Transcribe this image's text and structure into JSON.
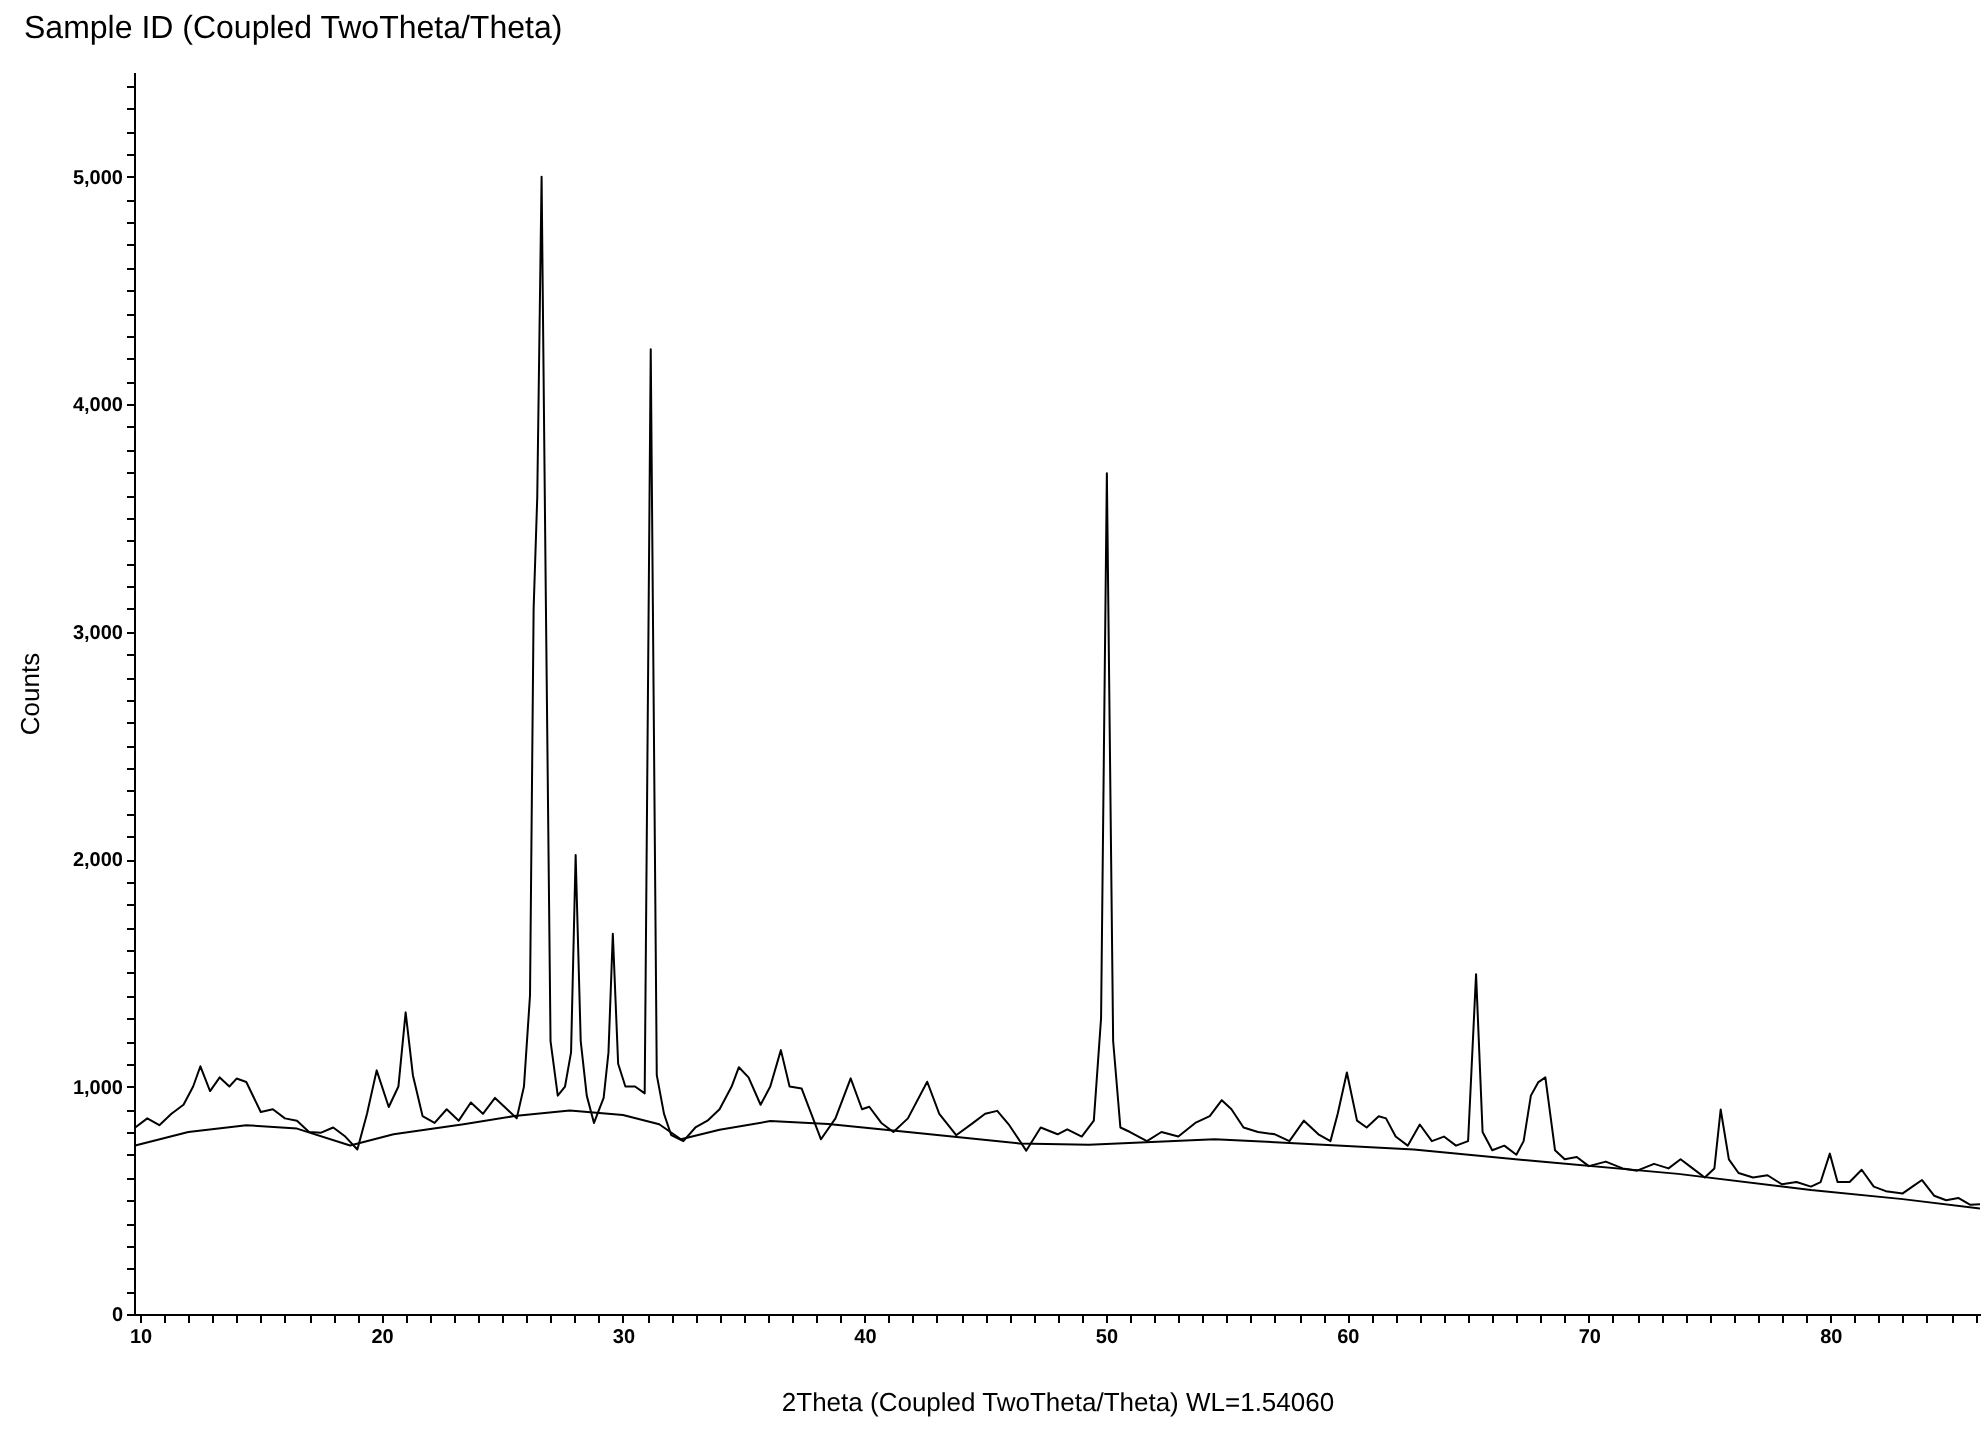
{
  "chart_data": {
    "type": "line",
    "title": "Sample ID (Coupled TwoTheta/Theta)",
    "xlabel": "2Theta (Coupled TwoTheta/Theta) WL=1.54060",
    "ylabel": "Counts",
    "xlim": [
      9.75,
      86.2
    ],
    "ylim": [
      0,
      5460
    ],
    "xticks": [
      10,
      {
        "value": 11,
        "label": null
      },
      {
        "value": 12,
        "label": null
      },
      {
        "value": 13,
        "label": null
      },
      {
        "value": 14,
        "label": null
      },
      {
        "value": 15,
        "label": null
      },
      {
        "value": 16,
        "label": null
      },
      {
        "value": 17,
        "label": null
      },
      {
        "value": 18,
        "label": null
      },
      {
        "value": 19,
        "label": null
      },
      20,
      {
        "value": 21,
        "label": null
      },
      {
        "value": 22,
        "label": null
      },
      {
        "value": 23,
        "label": null
      },
      {
        "value": 24,
        "label": null
      },
      {
        "value": 25,
        "label": null
      },
      {
        "value": 26,
        "label": null
      },
      {
        "value": 27,
        "label": null
      },
      {
        "value": 28,
        "label": null
      },
      {
        "value": 29,
        "label": null
      },
      30,
      {
        "value": 31,
        "label": null
      },
      {
        "value": 32,
        "label": null
      },
      {
        "value": 33,
        "label": null
      },
      {
        "value": 34,
        "label": null
      },
      {
        "value": 35,
        "label": null
      },
      {
        "value": 36,
        "label": null
      },
      {
        "value": 37,
        "label": null
      },
      {
        "value": 38,
        "label": null
      },
      {
        "value": 39,
        "label": null
      },
      40,
      {
        "value": 41,
        "label": null
      },
      {
        "value": 42,
        "label": null
      },
      {
        "value": 43,
        "label": null
      },
      {
        "value": 44,
        "label": null
      },
      {
        "value": 45,
        "label": null
      },
      {
        "value": 46,
        "label": null
      },
      {
        "value": 47,
        "label": null
      },
      {
        "value": 48,
        "label": null
      },
      {
        "value": 49,
        "label": null
      },
      50,
      {
        "value": 51,
        "label": null
      },
      {
        "value": 52,
        "label": null
      },
      {
        "value": 53,
        "label": null
      },
      {
        "value": 54,
        "label": null
      },
      {
        "value": 55,
        "label": null
      },
      {
        "value": 56,
        "label": null
      },
      {
        "value": 57,
        "label": null
      },
      {
        "value": 58,
        "label": null
      },
      {
        "value": 59,
        "label": null
      },
      60,
      {
        "value": 61,
        "label": null
      },
      {
        "value": 62,
        "label": null
      },
      {
        "value": 63,
        "label": null
      },
      {
        "value": 64,
        "label": null
      },
      {
        "value": 65,
        "label": null
      },
      {
        "value": 66,
        "label": null
      },
      {
        "value": 67,
        "label": null
      },
      {
        "value": 68,
        "label": null
      },
      {
        "value": 69,
        "label": null
      },
      70,
      {
        "value": 71,
        "label": null
      },
      {
        "value": 72,
        "label": null
      },
      {
        "value": 73,
        "label": null
      },
      {
        "value": 74,
        "label": null
      },
      {
        "value": 75,
        "label": null
      },
      {
        "value": 76,
        "label": null
      },
      {
        "value": 77,
        "label": null
      },
      {
        "value": 78,
        "label": null
      },
      {
        "value": 79,
        "label": null
      },
      80,
      {
        "value": 81,
        "label": null
      },
      {
        "value": 82,
        "label": null
      },
      {
        "value": 83,
        "label": null
      },
      {
        "value": 84,
        "label": null
      },
      {
        "value": 85,
        "label": null
      },
      {
        "value": 86,
        "label": null
      }
    ],
    "yticks": [
      0,
      {
        "value": 100,
        "label": null
      },
      {
        "value": 200,
        "label": null
      },
      {
        "value": 300,
        "label": null
      },
      {
        "value": 400,
        "label": null
      },
      {
        "value": 500,
        "label": null
      },
      {
        "value": 600,
        "label": null
      },
      {
        "value": 700,
        "label": null
      },
      {
        "value": 800,
        "label": null
      },
      {
        "value": 900,
        "label": null
      },
      {
        "value": 1000,
        "label": "1,000"
      },
      {
        "value": 1100,
        "label": null
      },
      {
        "value": 1200,
        "label": null
      },
      {
        "value": 1300,
        "label": null
      },
      {
        "value": 1400,
        "label": null
      },
      {
        "value": 1500,
        "label": null
      },
      {
        "value": 1600,
        "label": null
      },
      {
        "value": 1700,
        "label": null
      },
      {
        "value": 1800,
        "label": null
      },
      {
        "value": 1900,
        "label": null
      },
      {
        "value": 2000,
        "label": "2,000"
      },
      {
        "value": 2100,
        "label": null
      },
      {
        "value": 2200,
        "label": null
      },
      {
        "value": 2300,
        "label": null
      },
      {
        "value": 2400,
        "label": null
      },
      {
        "value": 2500,
        "label": null
      },
      {
        "value": 2600,
        "label": null
      },
      {
        "value": 2700,
        "label": null
      },
      {
        "value": 2800,
        "label": null
      },
      {
        "value": 2900,
        "label": null
      },
      {
        "value": 3000,
        "label": "3,000"
      },
      {
        "value": 3100,
        "label": null
      },
      {
        "value": 3200,
        "label": null
      },
      {
        "value": 3300,
        "label": null
      },
      {
        "value": 3400,
        "label": null
      },
      {
        "value": 3500,
        "label": null
      },
      {
        "value": 3600,
        "label": null
      },
      {
        "value": 3700,
        "label": null
      },
      {
        "value": 3800,
        "label": null
      },
      {
        "value": 3900,
        "label": null
      },
      {
        "value": 4000,
        "label": "4,000"
      },
      {
        "value": 4100,
        "label": null
      },
      {
        "value": 4200,
        "label": null
      },
      {
        "value": 4300,
        "label": null
      },
      {
        "value": 4400,
        "label": null
      },
      {
        "value": 4500,
        "label": null
      },
      {
        "value": 4600,
        "label": null
      },
      {
        "value": 4700,
        "label": null
      },
      {
        "value": 4800,
        "label": null
      },
      {
        "value": 4900,
        "label": null
      },
      {
        "value": 5000,
        "label": "5,000"
      },
      {
        "value": 5100,
        "label": null
      },
      {
        "value": 5200,
        "label": null
      },
      {
        "value": 5300,
        "label": null
      },
      {
        "value": 5400,
        "label": null
      }
    ],
    "series": [
      {
        "color": "#000000",
        "x": [
          9.8,
          10.3,
          10.8,
          11.3,
          11.8,
          12.2,
          12.5,
          12.9,
          13.3,
          13.7,
          14.0,
          14.4,
          15.0,
          15.5,
          16.0,
          16.5,
          17.0,
          17.5,
          18.0,
          18.5,
          19.0,
          19.4,
          19.8,
          20.3,
          20.7,
          21.0,
          21.3,
          21.7,
          22.2,
          22.7,
          23.2,
          23.7,
          24.2,
          24.7,
          25.2,
          25.6,
          25.9,
          26.15,
          26.3,
          26.45,
          26.63,
          26.8,
          27.0,
          27.3,
          27.6,
          27.85,
          28.04,
          28.25,
          28.5,
          28.8,
          29.2,
          29.4,
          29.58,
          29.8,
          30.1,
          30.5,
          30.9,
          31.15,
          31.4,
          31.7,
          32.0,
          32.5,
          33.0,
          33.5,
          34.0,
          34.5,
          34.8,
          35.2,
          35.7,
          36.1,
          36.54,
          36.9,
          37.4,
          37.8,
          38.2,
          38.8,
          39.43,
          39.9,
          40.2,
          40.7,
          41.2,
          41.8,
          42.6,
          43.1,
          43.8,
          44.5,
          45.0,
          45.5,
          46.0,
          46.7,
          47.3,
          48.0,
          48.4,
          49.0,
          49.5,
          49.8,
          50.04,
          50.3,
          50.6,
          51.0,
          51.7,
          52.3,
          53.0,
          53.7,
          54.3,
          54.8,
          55.2,
          55.7,
          56.3,
          57.0,
          57.6,
          58.2,
          58.8,
          59.3,
          59.6,
          59.98,
          60.4,
          60.8,
          61.3,
          61.6,
          62.0,
          62.5,
          63.0,
          63.5,
          64.0,
          64.5,
          65.0,
          65.33,
          65.6,
          66.0,
          66.5,
          67.0,
          67.3,
          67.6,
          67.9,
          68.2,
          68.6,
          69.0,
          69.5,
          70.0,
          70.7,
          71.4,
          72.0,
          72.7,
          73.3,
          73.8,
          74.3,
          74.8,
          75.2,
          75.46,
          75.8,
          76.2,
          76.8,
          77.4,
          78.0,
          78.6,
          79.2,
          79.6,
          79.98,
          80.3,
          80.8,
          81.3,
          81.8,
          82.3,
          83.0,
          83.4,
          83.8,
          84.3,
          84.8,
          85.3,
          85.8,
          86.2
        ],
        "values": [
          820,
          860,
          830,
          880,
          920,
          1000,
          1089,
          980,
          1040,
          1000,
          1035,
          1020,
          888,
          900,
          860,
          850,
          800,
          797,
          820,
          780,
          723,
          880,
          1071,
          910,
          1000,
          1326,
          1050,
          870,
          840,
          900,
          850,
          930,
          880,
          950,
          900,
          860,
          1000,
          1400,
          3100,
          3590,
          5000,
          3200,
          1200,
          960,
          1000,
          1150,
          2018,
          1200,
          960,
          840,
          950,
          1150,
          1672,
          1100,
          1000,
          1000,
          970,
          4241,
          1050,
          880,
          786,
          760,
          820,
          850,
          900,
          1000,
          1085,
          1040,
          920,
          1000,
          1160,
          1000,
          991,
          880,
          768,
          860,
          1036,
          900,
          911,
          840,
          800,
          860,
          1021,
          880,
          786,
          840,
          880,
          893,
          830,
          718,
          820,
          790,
          812,
          780,
          850,
          1300,
          3696,
          1200,
          820,
          800,
          760,
          800,
          780,
          840,
          870,
          940,
          900,
          820,
          800,
          790,
          760,
          850,
          790,
          760,
          880,
          1062,
          850,
          820,
          869,
          860,
          780,
          740,
          833,
          760,
          780,
          740,
          760,
          1494,
          800,
          720,
          740,
          700,
          760,
          960,
          1018,
          1040,
          720,
          680,
          690,
          650,
          670,
          640,
          630,
          660,
          640,
          680,
          640,
          600,
          640,
          899,
          680,
          620,
          600,
          610,
          570,
          580,
          560,
          580,
          705,
          580,
          580,
          634,
          560,
          540,
          530,
          560,
          589,
          520,
          500,
          510,
          480,
          482
        ]
      },
      {
        "color": "#000000",
        "x": [
          9.8,
          12,
          14.4,
          16.5,
          18.7,
          20.5,
          23.4,
          25.5,
          27.8,
          30,
          31.5,
          32.4,
          34,
          36.1,
          38.5,
          42,
          46.4,
          49.3,
          54.5,
          58,
          62.75,
          68,
          73.7,
          79.2,
          83,
          86.2
        ],
        "values": [
          741,
          800,
          830,
          815,
          741,
          790,
          834,
          870,
          895,
          875,
          834,
          768,
          810,
          848,
          835,
          798,
          750,
          744,
          768,
          750,
          723,
          670,
          616,
          545,
          505,
          464
        ]
      }
    ]
  }
}
